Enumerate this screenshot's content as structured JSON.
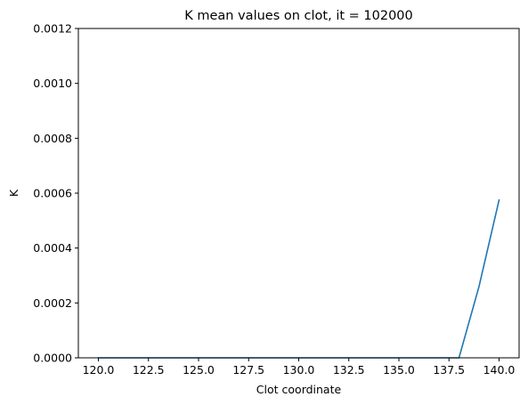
{
  "chart_data": {
    "type": "line",
    "title": "K mean values on clot, it = 102000",
    "xlabel": "Clot coordinate",
    "ylabel": "K",
    "xlim": [
      119.0,
      141.0
    ],
    "ylim": [
      0.0,
      0.0012
    ],
    "xticks": [
      120.0,
      122.5,
      125.0,
      127.5,
      130.0,
      132.5,
      135.0,
      137.5,
      140.0
    ],
    "xtick_labels": [
      "120.0",
      "122.5",
      "125.0",
      "127.5",
      "130.0",
      "132.5",
      "135.0",
      "137.5",
      "140.0"
    ],
    "yticks": [
      0.0,
      0.0002,
      0.0004,
      0.0006,
      0.0008,
      0.001,
      0.0012
    ],
    "ytick_labels": [
      "0.0000",
      "0.0002",
      "0.0004",
      "0.0006",
      "0.0008",
      "0.0010",
      "0.0012"
    ],
    "grid": false,
    "series": [
      {
        "color": "#1f77b4",
        "x": [
          120,
          121,
          122,
          123,
          124,
          125,
          126,
          127,
          128,
          129,
          130,
          131,
          132,
          133,
          134,
          135,
          136,
          137,
          138,
          139,
          140
        ],
        "y": [
          0,
          0,
          0,
          0,
          0,
          0,
          0,
          0,
          0,
          0,
          0,
          0,
          0,
          0,
          0,
          0,
          0,
          0,
          0,
          0.00026,
          0.000575
        ]
      }
    ]
  }
}
